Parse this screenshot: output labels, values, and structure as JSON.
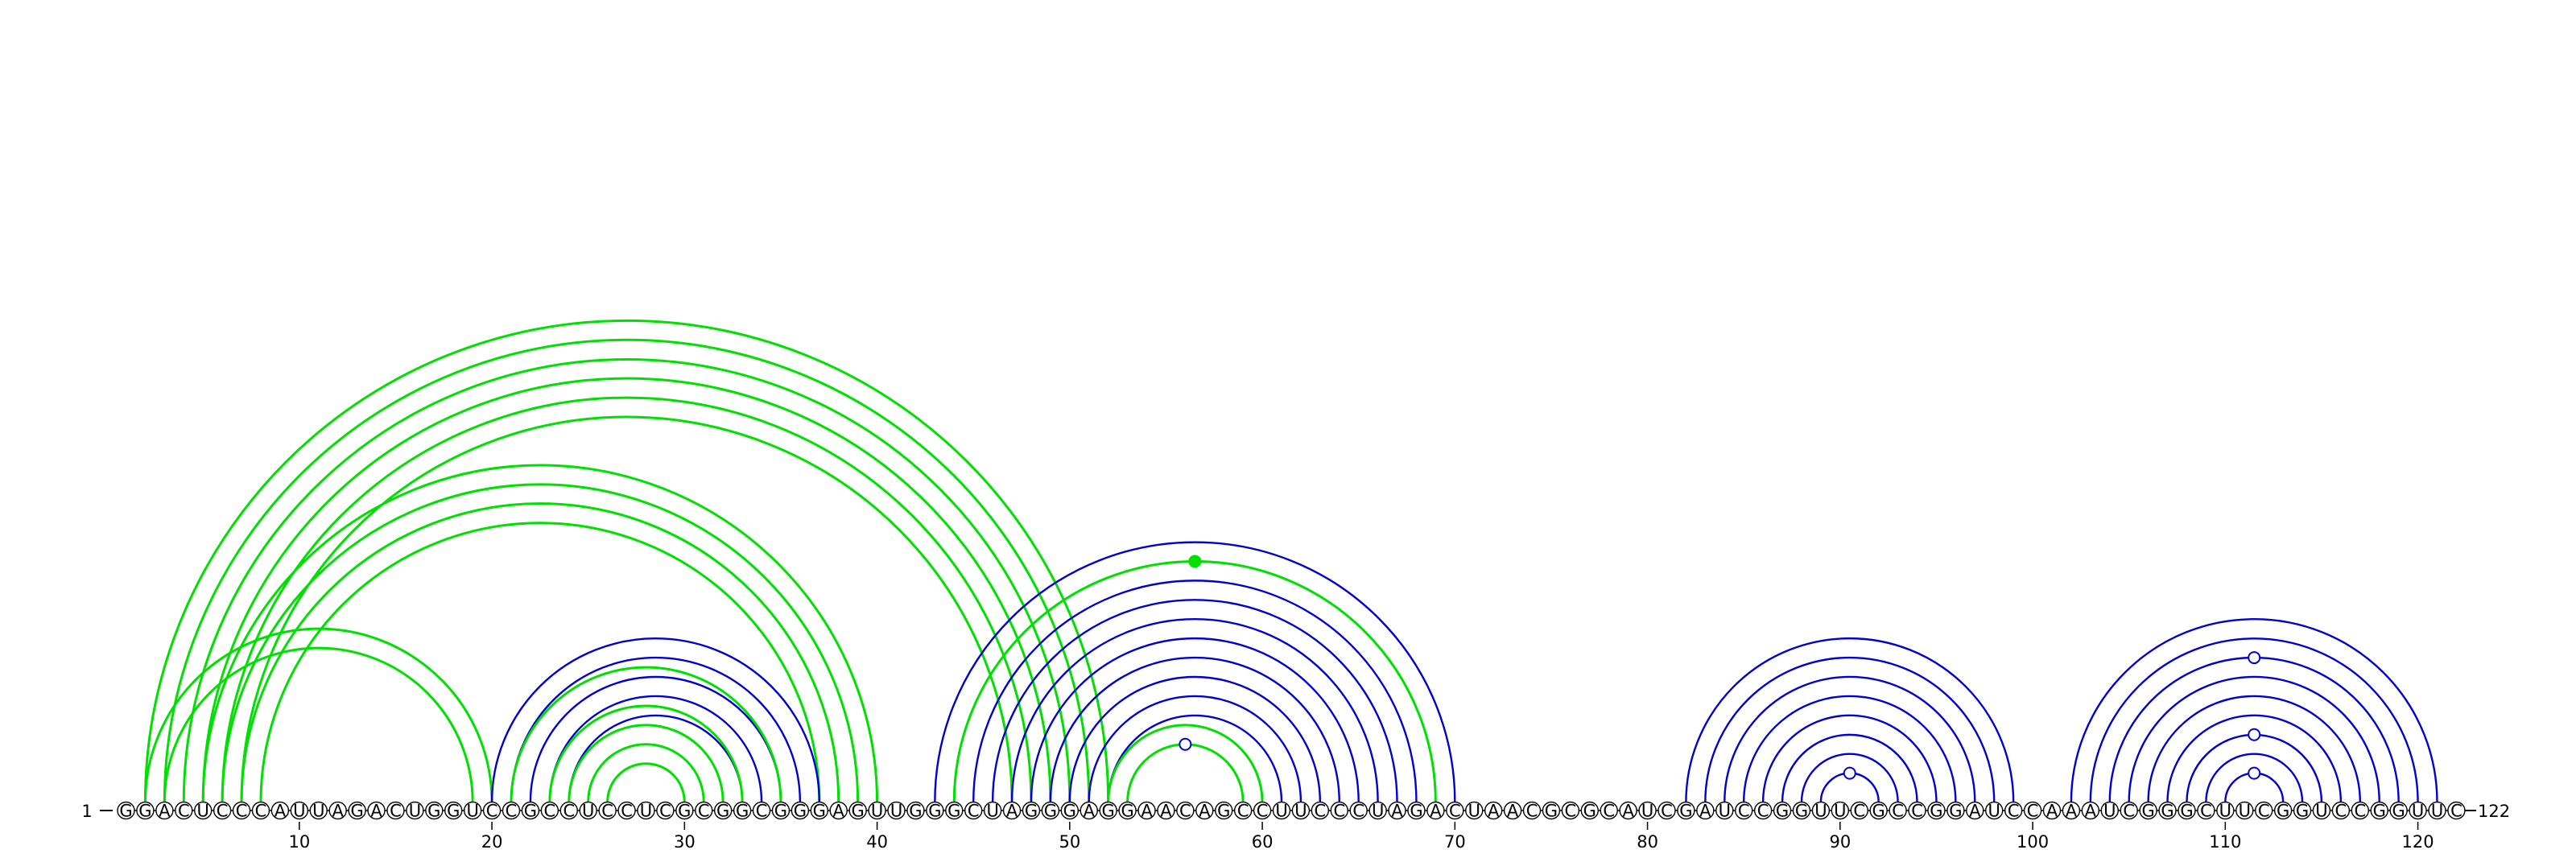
{
  "diagram": {
    "sequence": "GGACUCCCAUUAGACUGGUCCGCCUCCUCGCGGCGGGAGUUGGGCUAGGGAGGAACAGCCUUCCCUAGACUAACGCGCAUCGAUCCGGUUCGCCGGAUCCAAAUCGGGCUUCGGUCCGGUUC",
    "start_label": "1",
    "end_label": "122",
    "ticks": [
      "10",
      "20",
      "30",
      "40",
      "50",
      "60",
      "70",
      "80",
      "90",
      "100",
      "110",
      "120"
    ],
    "colors": {
      "green": "#00e000",
      "blue": "#0000d0"
    },
    "arcs": [
      {
        "i": 2,
        "j": 52,
        "color": "green"
      },
      {
        "i": 3,
        "j": 51,
        "color": "green"
      },
      {
        "i": 4,
        "j": 50,
        "color": "green"
      },
      {
        "i": 5,
        "j": 49,
        "color": "green"
      },
      {
        "i": 6,
        "j": 48,
        "color": "green"
      },
      {
        "i": 7,
        "j": 47,
        "color": "green"
      },
      {
        "i": 5,
        "j": 40,
        "color": "green"
      },
      {
        "i": 6,
        "j": 39,
        "color": "green"
      },
      {
        "i": 7,
        "j": 38,
        "color": "green"
      },
      {
        "i": 8,
        "j": 37,
        "color": "green"
      },
      {
        "i": 2,
        "j": 20,
        "color": "green"
      },
      {
        "i": 3,
        "j": 19,
        "color": "green"
      },
      {
        "i": 20,
        "j": 37,
        "color": "blue"
      },
      {
        "i": 21,
        "j": 36,
        "color": "blue"
      },
      {
        "i": 22,
        "j": 35,
        "color": "blue"
      },
      {
        "i": 23,
        "j": 34,
        "color": "blue"
      },
      {
        "i": 24,
        "j": 33,
        "color": "blue"
      },
      {
        "i": 21,
        "j": 35,
        "color": "green"
      },
      {
        "i": 23,
        "j": 33,
        "color": "green"
      },
      {
        "i": 24,
        "j": 32,
        "color": "green"
      },
      {
        "i": 25,
        "j": 31,
        "color": "green"
      },
      {
        "i": 26,
        "j": 30,
        "color": "green"
      },
      {
        "i": 43,
        "j": 70,
        "color": "blue"
      },
      {
        "i": 44,
        "j": 69,
        "color": "green"
      },
      {
        "i": 45,
        "j": 68,
        "color": "blue"
      },
      {
        "i": 46,
        "j": 67,
        "color": "blue"
      },
      {
        "i": 47,
        "j": 66,
        "color": "blue"
      },
      {
        "i": 48,
        "j": 65,
        "color": "blue"
      },
      {
        "i": 49,
        "j": 64,
        "color": "blue"
      },
      {
        "i": 50,
        "j": 63,
        "color": "blue"
      },
      {
        "i": 51,
        "j": 62,
        "color": "blue"
      },
      {
        "i": 52,
        "j": 61,
        "color": "blue"
      },
      {
        "i": 52,
        "j": 60,
        "color": "green"
      },
      {
        "i": 53,
        "j": 59,
        "color": "green"
      },
      {
        "i": 82,
        "j": 99,
        "color": "blue"
      },
      {
        "i": 83,
        "j": 98,
        "color": "blue"
      },
      {
        "i": 84,
        "j": 97,
        "color": "blue"
      },
      {
        "i": 85,
        "j": 96,
        "color": "blue"
      },
      {
        "i": 86,
        "j": 95,
        "color": "blue"
      },
      {
        "i": 87,
        "j": 94,
        "color": "blue"
      },
      {
        "i": 88,
        "j": 93,
        "color": "blue"
      },
      {
        "i": 89,
        "j": 92,
        "color": "blue"
      },
      {
        "i": 102,
        "j": 121,
        "color": "blue"
      },
      {
        "i": 103,
        "j": 120,
        "color": "blue"
      },
      {
        "i": 104,
        "j": 119,
        "color": "blue"
      },
      {
        "i": 105,
        "j": 118,
        "color": "blue"
      },
      {
        "i": 106,
        "j": 117,
        "color": "blue"
      },
      {
        "i": 107,
        "j": 116,
        "color": "blue"
      },
      {
        "i": 108,
        "j": 115,
        "color": "blue"
      },
      {
        "i": 109,
        "j": 114,
        "color": "blue"
      },
      {
        "i": 110,
        "j": 113,
        "color": "blue"
      }
    ],
    "markers": [
      {
        "i": 44,
        "j": 69,
        "fill": "green",
        "stroke": "green"
      },
      {
        "i": 53,
        "j": 59,
        "fill": "white",
        "stroke": "blue"
      },
      {
        "i": 89,
        "j": 92,
        "fill": "white",
        "stroke": "blue"
      },
      {
        "i": 104,
        "j": 119,
        "fill": "white",
        "stroke": "blue"
      },
      {
        "i": 108,
        "j": 115,
        "fill": "white",
        "stroke": "blue"
      },
      {
        "i": 110,
        "j": 113,
        "fill": "white",
        "stroke": "blue"
      }
    ]
  }
}
